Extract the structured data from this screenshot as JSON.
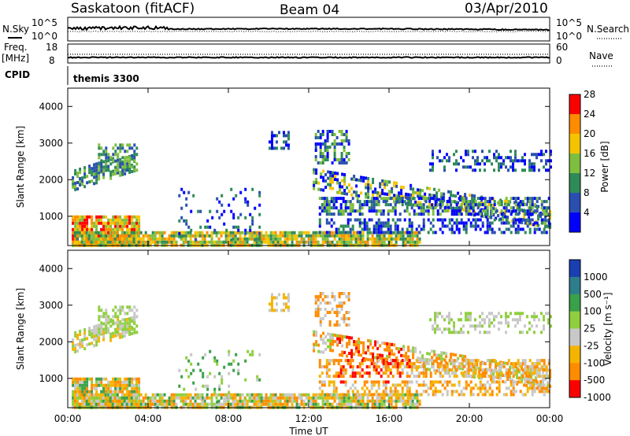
{
  "header": {
    "station": "Saskatoon (fitACF)",
    "beam": "Beam 04",
    "date": "03/Apr/2010"
  },
  "aux_panels": {
    "nsky_label": "N.Sky",
    "nsearch_label": "N.Search",
    "noise_ticks": [
      "10^5",
      "10^0"
    ],
    "freq_label_1": "Freq.",
    "freq_label_2": "[MHz]",
    "freq_ticks": [
      "18",
      "8"
    ],
    "nave_label": "Nave",
    "nave_ticks": [
      "60",
      "0"
    ],
    "cpid_label": "CPID",
    "cpid_value": "themis 3300"
  },
  "chart_data": [
    {
      "type": "heatmap",
      "name": "power",
      "ylabel": "Slant Range [km]",
      "yticks": [
        "1000",
        "2000",
        "3000",
        "4000"
      ],
      "ylim": [
        200,
        4500
      ],
      "colorbar_label": "Power [dB]",
      "colorbar_ticks": [
        "4",
        "8",
        "12",
        "16",
        "20",
        "24",
        "28"
      ],
      "colors": [
        "#0000ff",
        "#2a4fb0",
        "#2e8b57",
        "#7fbf3f",
        "#f5c400",
        "#ff8c00",
        "#ff0000"
      ]
    },
    {
      "type": "heatmap",
      "name": "velocity",
      "ylabel": "Slant Range [km]",
      "yticks": [
        "1000",
        "2000",
        "3000",
        "4000"
      ],
      "ylim": [
        200,
        4500
      ],
      "colorbar_label": "Velocity [m s⁻¹]",
      "colorbar_ticks": [
        "1000",
        "500",
        "100",
        "25",
        "-25",
        "-100",
        "-500",
        "-1000"
      ],
      "colors": [
        "#1a3fb0",
        "#2e7d8c",
        "#3aa04a",
        "#8fcf3f",
        "#c8c8c8",
        "#f5b400",
        "#ff8c00",
        "#ff0000"
      ]
    }
  ],
  "time_axis": {
    "label": "Time UT",
    "ticks": [
      "00:00",
      "04:00",
      "08:00",
      "12:00",
      "16:00",
      "20:00",
      "00:00"
    ]
  }
}
